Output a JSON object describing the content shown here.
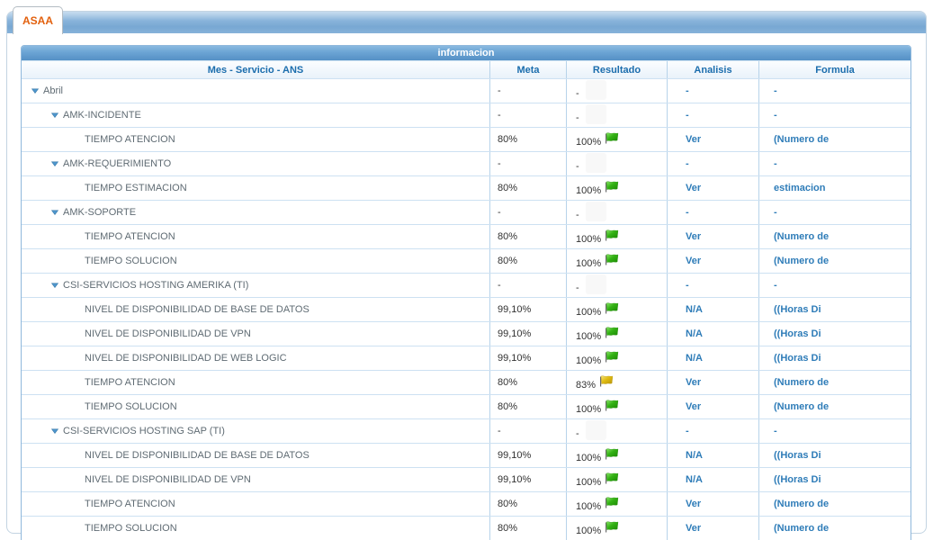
{
  "tab": {
    "label": "ASAA"
  },
  "panel": {
    "header": "informacion"
  },
  "table": {
    "columns": [
      "Mes - Servicio - ANS",
      "Meta",
      "Resultado",
      "Analisis",
      "Formula"
    ],
    "rows": [
      {
        "label": "Abril",
        "level": 1,
        "group": true,
        "meta": "-",
        "resultado": "-",
        "flag": null,
        "analisis": "-",
        "formula": "-"
      },
      {
        "label": "AMK-INCIDENTE",
        "level": 2,
        "group": true,
        "meta": "-",
        "resultado": "-",
        "flag": null,
        "analisis": "-",
        "formula": "-"
      },
      {
        "label": "TIEMPO ATENCION",
        "level": 3,
        "group": false,
        "meta": "80%",
        "resultado": "100%",
        "flag": "green",
        "analisis": "Ver",
        "formula": "(Numero de"
      },
      {
        "label": "AMK-REQUERIMIENTO",
        "level": 2,
        "group": true,
        "meta": "-",
        "resultado": "-",
        "flag": null,
        "analisis": "-",
        "formula": "-"
      },
      {
        "label": "TIEMPO ESTIMACION",
        "level": 3,
        "group": false,
        "meta": "80%",
        "resultado": "100%",
        "flag": "green",
        "analisis": "Ver",
        "formula": "estimacion"
      },
      {
        "label": "AMK-SOPORTE",
        "level": 2,
        "group": true,
        "meta": "-",
        "resultado": "-",
        "flag": null,
        "analisis": "-",
        "formula": "-"
      },
      {
        "label": "TIEMPO ATENCION",
        "level": 3,
        "group": false,
        "meta": "80%",
        "resultado": "100%",
        "flag": "green",
        "analisis": "Ver",
        "formula": "(Numero de"
      },
      {
        "label": "TIEMPO SOLUCION",
        "level": 3,
        "group": false,
        "meta": "80%",
        "resultado": "100%",
        "flag": "green",
        "analisis": "Ver",
        "formula": "(Numero de"
      },
      {
        "label": "CSI-SERVICIOS HOSTING AMERIKA (TI)",
        "level": 2,
        "group": true,
        "meta": "-",
        "resultado": "-",
        "flag": null,
        "analisis": "-",
        "formula": "-"
      },
      {
        "label": "NIVEL DE DISPONIBILIDAD DE BASE DE DATOS",
        "level": 3,
        "group": false,
        "meta": "99,10%",
        "resultado": "100%",
        "flag": "green",
        "analisis": "N/A",
        "formula": "((Horas Di"
      },
      {
        "label": "NIVEL DE DISPONIBILIDAD DE VPN",
        "level": 3,
        "group": false,
        "meta": "99,10%",
        "resultado": "100%",
        "flag": "green",
        "analisis": "N/A",
        "formula": "((Horas Di"
      },
      {
        "label": "NIVEL DE DISPONIBILIDAD DE WEB LOGIC",
        "level": 3,
        "group": false,
        "meta": "99,10%",
        "resultado": "100%",
        "flag": "green",
        "analisis": "N/A",
        "formula": "((Horas Di"
      },
      {
        "label": "TIEMPO ATENCION",
        "level": 3,
        "group": false,
        "meta": "80%",
        "resultado": "83%",
        "flag": "yellow",
        "analisis": "Ver",
        "formula": "(Numero de"
      },
      {
        "label": "TIEMPO SOLUCION",
        "level": 3,
        "group": false,
        "meta": "80%",
        "resultado": "100%",
        "flag": "green",
        "analisis": "Ver",
        "formula": "(Numero de"
      },
      {
        "label": "CSI-SERVICIOS HOSTING SAP (TI)",
        "level": 2,
        "group": true,
        "meta": "-",
        "resultado": "-",
        "flag": null,
        "analisis": "-",
        "formula": "-"
      },
      {
        "label": "NIVEL DE DISPONIBILIDAD DE BASE DE DATOS",
        "level": 3,
        "group": false,
        "meta": "99,10%",
        "resultado": "100%",
        "flag": "green",
        "analisis": "N/A",
        "formula": "((Horas Di"
      },
      {
        "label": "NIVEL DE DISPONIBILIDAD DE VPN",
        "level": 3,
        "group": false,
        "meta": "99,10%",
        "resultado": "100%",
        "flag": "green",
        "analisis": "N/A",
        "formula": "((Horas Di"
      },
      {
        "label": "TIEMPO ATENCION",
        "level": 3,
        "group": false,
        "meta": "80%",
        "resultado": "100%",
        "flag": "green",
        "analisis": "Ver",
        "formula": "(Numero de"
      },
      {
        "label": "TIEMPO SOLUCION",
        "level": 3,
        "group": false,
        "meta": "80%",
        "resultado": "100%",
        "flag": "green",
        "analisis": "Ver",
        "formula": "(Numero de"
      }
    ]
  },
  "colors": {
    "tab_text": "#e2600d",
    "link_text": "#2e7cb8",
    "header_text": "#1b6dad",
    "triangle": "#4e96cd",
    "flags": {
      "green": {
        "light": "#8ce56a",
        "main": "#33b214",
        "dark": "#1d8a04"
      },
      "yellow": {
        "light": "#f6e47f",
        "main": "#e0bc12",
        "dark": "#b6930a"
      }
    }
  }
}
